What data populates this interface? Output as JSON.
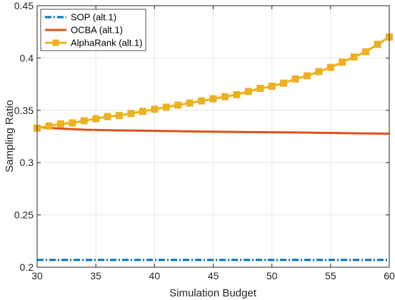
{
  "chart_data": {
    "type": "line",
    "xlabel": "Simulation Budget",
    "ylabel": "Sampling Ratio",
    "xlim": [
      30,
      60
    ],
    "ylim": [
      0.2,
      0.45
    ],
    "xticks": [
      "30",
      "35",
      "40",
      "45",
      "50",
      "55",
      "60"
    ],
    "yticks": [
      "0.2",
      "0.25",
      "0.3",
      "0.35",
      "0.4",
      "0.45"
    ],
    "grid": true,
    "legend_position": "top-left",
    "series": [
      {
        "name": "SOP (alt.1)",
        "color": "#0072BD",
        "style": "dash-dot",
        "marker": "none",
        "x": [
          30,
          60
        ],
        "y": [
          0.207,
          0.207
        ]
      },
      {
        "name": "OCBA (alt.1)",
        "color": "#D95319",
        "style": "solid",
        "marker": "none",
        "x": [
          30,
          32,
          34,
          36,
          38,
          40,
          42,
          44,
          46,
          48,
          50,
          52,
          54,
          56,
          58,
          60
        ],
        "y": [
          0.334,
          0.3325,
          0.3315,
          0.331,
          0.3307,
          0.3304,
          0.33,
          0.3297,
          0.3294,
          0.3292,
          0.329,
          0.3288,
          0.3285,
          0.3282,
          0.3279,
          0.3276
        ]
      },
      {
        "name": "AlphaRank (alt.1)",
        "color": "#EDB120",
        "style": "solid",
        "marker": "square",
        "x": [
          30,
          31,
          32,
          33,
          34,
          35,
          36,
          37,
          38,
          39,
          40,
          41,
          42,
          43,
          44,
          45,
          46,
          47,
          48,
          49,
          50,
          51,
          52,
          53,
          54,
          55,
          56,
          57,
          58,
          59,
          60
        ],
        "y": [
          0.333,
          0.335,
          0.337,
          0.338,
          0.34,
          0.342,
          0.344,
          0.345,
          0.347,
          0.349,
          0.351,
          0.353,
          0.355,
          0.357,
          0.359,
          0.361,
          0.363,
          0.365,
          0.368,
          0.371,
          0.373,
          0.376,
          0.38,
          0.383,
          0.387,
          0.391,
          0.396,
          0.401,
          0.406,
          0.413,
          0.42
        ]
      }
    ]
  }
}
